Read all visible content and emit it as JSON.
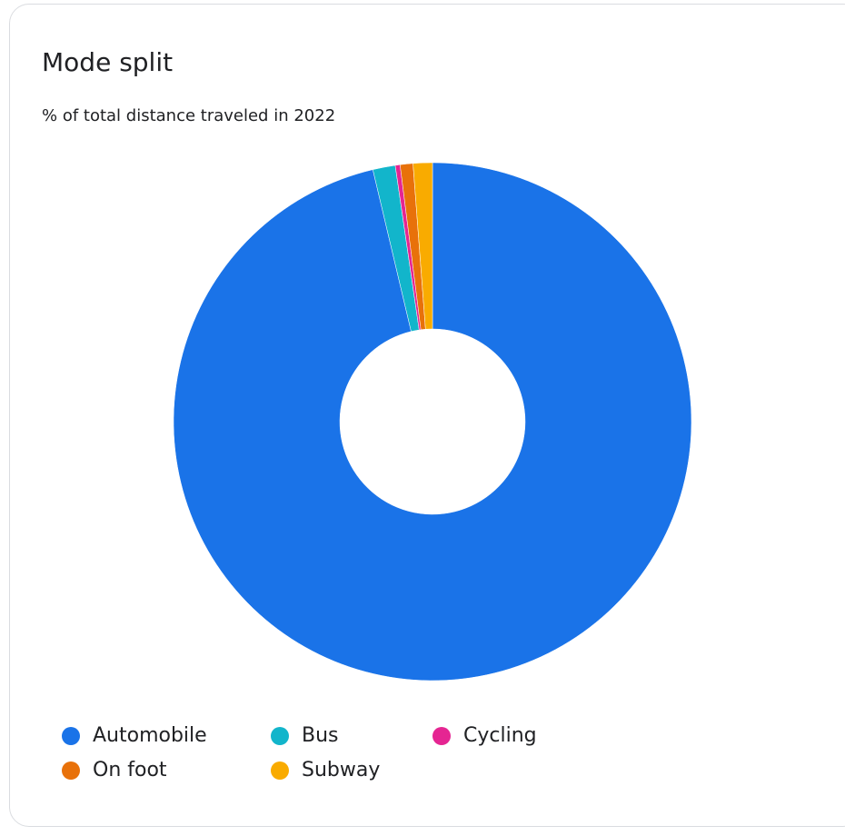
{
  "chart_data": {
    "type": "donut",
    "title": "Mode split",
    "subtitle": "% of total distance traveled in 2022",
    "categories": [
      "Automobile",
      "Bus",
      "Cycling",
      "On foot",
      "Subway"
    ],
    "values": [
      96.3,
      1.4,
      0.3,
      0.8,
      1.2
    ],
    "colors": [
      "#1a73e8",
      "#12b5cb",
      "#e52592",
      "#e8710a",
      "#f9ab00"
    ],
    "legend": "bottom"
  }
}
